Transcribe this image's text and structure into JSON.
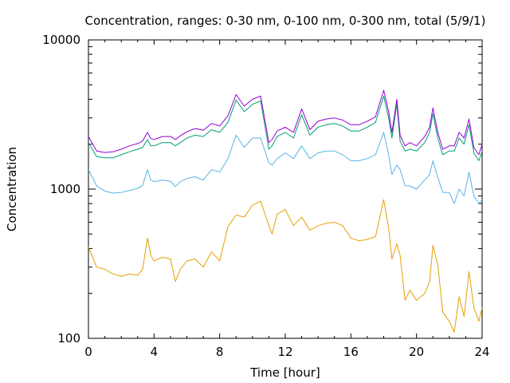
{
  "chart_data": {
    "type": "line",
    "title": "Concentration, ranges: 0-30 nm, 0-100 nm, 0-300 nm, total (5/9/1)",
    "xlabel": "Time [hour]",
    "ylabel": "Concentration",
    "xlim": [
      0,
      24
    ],
    "ylim": [
      100,
      10000
    ],
    "yscale": "log",
    "xticks": [
      "0",
      "4",
      "8",
      "12",
      "16",
      "20",
      "24"
    ],
    "yticks": [
      "100",
      "1000",
      "10000"
    ],
    "grid": false,
    "legend": "none",
    "series": [
      {
        "color": "#e69f00",
        "x": [
          0.0,
          0.5,
          1.0,
          1.5,
          2.0,
          2.5,
          3.0,
          3.3,
          3.6,
          3.8,
          4.0,
          4.5,
          5.0,
          5.3,
          5.6,
          6.0,
          6.5,
          7.0,
          7.5,
          8.0,
          8.5,
          9.0,
          9.5,
          10.0,
          10.5,
          11.0,
          11.2,
          11.5,
          12.0,
          12.5,
          13.0,
          13.5,
          14.0,
          14.5,
          15.0,
          15.5,
          16.0,
          16.5,
          17.0,
          17.5,
          18.0,
          18.3,
          18.5,
          18.8,
          19.0,
          19.3,
          19.6,
          20.0,
          20.5,
          20.8,
          21.0,
          21.3,
          21.6,
          22.0,
          22.3,
          22.6,
          22.9,
          23.2,
          23.5,
          23.8,
          24.0
        ],
        "values": [
          410,
          300,
          290,
          270,
          260,
          270,
          265,
          290,
          470,
          360,
          330,
          350,
          340,
          240,
          290,
          330,
          340,
          300,
          380,
          330,
          560,
          670,
          650,
          780,
          830,
          570,
          500,
          680,
          730,
          570,
          650,
          530,
          570,
          590,
          600,
          570,
          470,
          450,
          460,
          480,
          850,
          550,
          340,
          430,
          360,
          180,
          210,
          180,
          200,
          240,
          420,
          310,
          150,
          130,
          110,
          190,
          140,
          280,
          160,
          130,
          160
        ]
      },
      {
        "color": "#56b4e9",
        "x": [
          0.0,
          0.5,
          1.0,
          1.5,
          2.0,
          2.5,
          3.0,
          3.3,
          3.6,
          3.8,
          4.0,
          4.5,
          5.0,
          5.3,
          5.6,
          6.0,
          6.5,
          7.0,
          7.5,
          8.0,
          8.5,
          9.0,
          9.5,
          10.0,
          10.5,
          11.0,
          11.2,
          11.5,
          12.0,
          12.5,
          13.0,
          13.5,
          14.0,
          14.5,
          15.0,
          15.5,
          16.0,
          16.5,
          17.0,
          17.5,
          18.0,
          18.3,
          18.5,
          18.8,
          19.0,
          19.3,
          19.6,
          20.0,
          20.5,
          20.8,
          21.0,
          21.3,
          21.6,
          22.0,
          22.3,
          22.6,
          22.9,
          23.2,
          23.5,
          23.8,
          24.0
        ],
        "values": [
          1350,
          1050,
          970,
          940,
          950,
          980,
          1010,
          1060,
          1350,
          1150,
          1120,
          1150,
          1130,
          1040,
          1120,
          1180,
          1210,
          1150,
          1350,
          1300,
          1600,
          2300,
          1900,
          2200,
          2200,
          1500,
          1450,
          1600,
          1750,
          1600,
          1950,
          1600,
          1750,
          1800,
          1800,
          1700,
          1550,
          1550,
          1600,
          1700,
          2400,
          1700,
          1250,
          1450,
          1350,
          1050,
          1050,
          1000,
          1150,
          1250,
          1550,
          1200,
          950,
          950,
          800,
          1000,
          900,
          1300,
          900,
          800,
          850
        ]
      },
      {
        "color": "#009e73",
        "x": [
          0.0,
          0.5,
          1.0,
          1.5,
          2.0,
          2.5,
          3.0,
          3.3,
          3.6,
          3.8,
          4.0,
          4.5,
          5.0,
          5.3,
          5.6,
          6.0,
          6.5,
          7.0,
          7.5,
          8.0,
          8.5,
          9.0,
          9.5,
          10.0,
          10.5,
          11.0,
          11.2,
          11.5,
          12.0,
          12.5,
          13.0,
          13.5,
          14.0,
          14.5,
          15.0,
          15.5,
          16.0,
          16.5,
          17.0,
          17.5,
          18.0,
          18.3,
          18.5,
          18.8,
          19.0,
          19.3,
          19.6,
          20.0,
          20.5,
          20.8,
          21.0,
          21.3,
          21.6,
          22.0,
          22.3,
          22.6,
          22.9,
          23.2,
          23.5,
          23.8,
          24.0
        ],
        "values": [
          2050,
          1650,
          1620,
          1620,
          1700,
          1780,
          1850,
          1900,
          2150,
          1950,
          1950,
          2050,
          2050,
          1950,
          2050,
          2200,
          2300,
          2250,
          2500,
          2400,
          2800,
          3950,
          3300,
          3700,
          3900,
          1850,
          1950,
          2250,
          2400,
          2200,
          3150,
          2300,
          2600,
          2700,
          2750,
          2650,
          2450,
          2450,
          2600,
          2800,
          4200,
          3000,
          2200,
          3700,
          2100,
          1800,
          1850,
          1800,
          2050,
          2400,
          3200,
          2200,
          1700,
          1800,
          1800,
          2200,
          2000,
          2700,
          1750,
          1550,
          1800
        ]
      },
      {
        "color": "#9400d3",
        "x": [
          0.0,
          0.5,
          1.0,
          1.5,
          2.0,
          2.5,
          3.0,
          3.3,
          3.6,
          3.8,
          4.0,
          4.5,
          5.0,
          5.3,
          5.6,
          6.0,
          6.5,
          7.0,
          7.5,
          8.0,
          8.5,
          9.0,
          9.5,
          10.0,
          10.5,
          11.0,
          11.2,
          11.5,
          12.0,
          12.5,
          13.0,
          13.5,
          14.0,
          14.5,
          15.0,
          15.5,
          16.0,
          16.5,
          17.0,
          17.5,
          18.0,
          18.3,
          18.5,
          18.8,
          19.0,
          19.3,
          19.6,
          20.0,
          20.5,
          20.8,
          21.0,
          21.3,
          21.6,
          22.0,
          22.3,
          22.6,
          22.9,
          23.2,
          23.5,
          23.8,
          24.0
        ],
        "values": [
          2250,
          1800,
          1760,
          1780,
          1850,
          1950,
          2020,
          2100,
          2400,
          2180,
          2150,
          2250,
          2250,
          2150,
          2280,
          2420,
          2550,
          2480,
          2750,
          2650,
          3100,
          4300,
          3600,
          4000,
          4200,
          2050,
          2150,
          2450,
          2600,
          2400,
          3450,
          2500,
          2850,
          2950,
          3000,
          2900,
          2700,
          2700,
          2850,
          3050,
          4600,
          3300,
          2400,
          4000,
          2300,
          1950,
          2050,
          1950,
          2250,
          2600,
          3500,
          2400,
          1850,
          1950,
          1950,
          2400,
          2200,
          2950,
          1900,
          1700,
          2000
        ]
      }
    ]
  }
}
